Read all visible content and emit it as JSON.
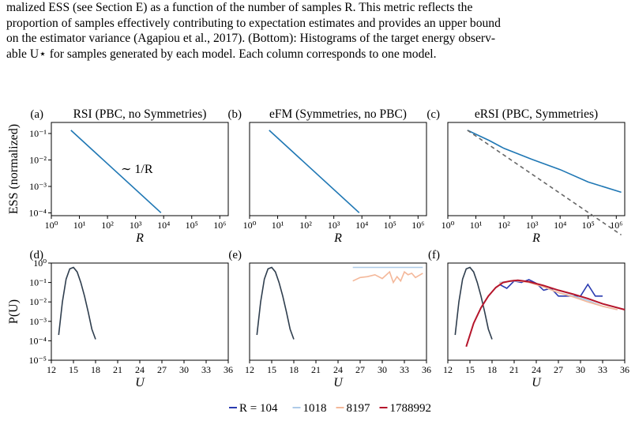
{
  "caption": {
    "line1": "malized ESS (see Section E) as a function of the number of samples R. This metric reflects the",
    "line2": "proportion of samples effectively contributing to expectation estimates and provides an upper bound",
    "line3": "on the estimator variance (Agapiou et al., 2017). (Bottom): Histograms of the target energy observ-",
    "line4": "able U⋆ for samples generated by each model. Each column corresponds to one model."
  },
  "chart_data": [
    {
      "type": "line",
      "panel": "(a)",
      "title": "RSI (PBC, no Symmetries)",
      "xlabel": "R",
      "ylabel": "ESS (normalized)",
      "xscale": "log",
      "yscale": "log",
      "xlim": [
        1,
        2000000
      ],
      "ylim": [
        0.0001,
        0.4
      ],
      "xticks": [
        "10⁰",
        "10¹",
        "10²",
        "10³",
        "10⁴",
        "10⁵",
        "10⁶"
      ],
      "yticks": [
        "10⁻¹",
        "10⁻²",
        "10⁻³",
        "10⁻⁴"
      ],
      "annotation": "∼ 1/R",
      "series": [
        {
          "color": "#1f77b4",
          "x": [
            5,
            8000
          ],
          "y": [
            0.2,
            0.00013
          ]
        }
      ]
    },
    {
      "type": "line",
      "panel": "(b)",
      "title": "eFM (Symmetries, no PBC)",
      "xlabel": "R",
      "xscale": "log",
      "yscale": "log",
      "xlim": [
        1,
        2000000
      ],
      "ylim": [
        0.0001,
        0.4
      ],
      "xticks": [
        "10⁰",
        "10¹",
        "10²",
        "10³",
        "10⁴",
        "10⁵",
        "10⁶"
      ],
      "series": [
        {
          "color": "#1f77b4",
          "x": [
            5,
            8000
          ],
          "y": [
            0.2,
            0.00013
          ]
        }
      ]
    },
    {
      "type": "line",
      "panel": "(c)",
      "title": "eRSI (PBC, Symmetries)",
      "xlabel": "R",
      "xscale": "log",
      "yscale": "log",
      "xlim": [
        1,
        2000000
      ],
      "ylim": [
        0.0001,
        0.4
      ],
      "xticks": [
        "10⁰",
        "10¹",
        "10²",
        "10³",
        "10⁴",
        "10⁵",
        "10⁶"
      ],
      "series": [
        {
          "color": "#1f77b4",
          "x": [
            5,
            30,
            100,
            1000,
            10000,
            100000,
            1500000
          ],
          "y": [
            0.2,
            0.08,
            0.04,
            0.015,
            0.006,
            0.002,
            0.0008
          ]
        },
        {
          "color": "#666666",
          "dashed": true,
          "x": [
            5,
            1500000
          ],
          "y": [
            0.2,
            1.8e-05
          ]
        }
      ]
    },
    {
      "type": "line",
      "panel": "(d)",
      "xlabel": "U",
      "ylabel": "P(U)",
      "yscale": "log",
      "xlim": [
        12,
        36
      ],
      "ylim": [
        1e-05,
        1
      ],
      "xticks": [
        "12",
        "15",
        "18",
        "21",
        "24",
        "27",
        "30",
        "33",
        "36"
      ],
      "yticks": [
        "10⁰",
        "10⁻¹",
        "10⁻²",
        "10⁻³",
        "10⁻⁴",
        "10⁻⁵"
      ],
      "series": [
        {
          "color": "#2f3e4e",
          "x": [
            13,
            13.5,
            14,
            14.5,
            15,
            15.5,
            16,
            16.5,
            17,
            17.5,
            18
          ],
          "y": [
            0.0002,
            0.01,
            0.15,
            0.5,
            0.6,
            0.35,
            0.1,
            0.02,
            0.003,
            0.0004,
            0.00012
          ]
        }
      ]
    },
    {
      "type": "line",
      "panel": "(e)",
      "xlabel": "U",
      "yscale": "log",
      "xlim": [
        12,
        36
      ],
      "ylim": [
        1e-05,
        1
      ],
      "xticks": [
        "12",
        "15",
        "18",
        "21",
        "24",
        "27",
        "30",
        "33",
        "36"
      ],
      "series": [
        {
          "color": "#2f3e4e",
          "x": [
            13,
            13.5,
            14,
            14.5,
            15,
            15.5,
            16,
            16.5,
            17,
            17.5,
            18
          ],
          "y": [
            0.0002,
            0.01,
            0.15,
            0.5,
            0.6,
            0.35,
            0.1,
            0.02,
            0.003,
            0.0004,
            0.00012
          ]
        },
        {
          "color": "#aecbe8",
          "x": [
            26,
            35.5
          ],
          "y": [
            0.6,
            0.6
          ]
        },
        {
          "color": "#f4b89a",
          "x": [
            26,
            27,
            28,
            29,
            30,
            31,
            31.5,
            32,
            32.5,
            33,
            33.5,
            34,
            34.5,
            35.5
          ],
          "y": [
            0.12,
            0.18,
            0.2,
            0.25,
            0.16,
            0.35,
            0.1,
            0.2,
            0.12,
            0.35,
            0.25,
            0.3,
            0.18,
            0.3
          ]
        }
      ]
    },
    {
      "type": "line",
      "panel": "(f)",
      "xlabel": "U",
      "yscale": "log",
      "xlim": [
        12,
        36
      ],
      "ylim": [
        1e-05,
        1
      ],
      "xticks": [
        "12",
        "15",
        "18",
        "21",
        "24",
        "27",
        "30",
        "33",
        "36"
      ],
      "series": [
        {
          "color": "#2f3e4e",
          "x": [
            13,
            13.5,
            14,
            14.5,
            15,
            15.5,
            16,
            16.5,
            17,
            17.5,
            18
          ],
          "y": [
            0.0002,
            0.01,
            0.15,
            0.5,
            0.6,
            0.35,
            0.1,
            0.02,
            0.003,
            0.0004,
            0.00012
          ]
        },
        {
          "name": "R = 104",
          "color": "#2a3bb0",
          "x": [
            19,
            20,
            21,
            22,
            23,
            24,
            25,
            26,
            27,
            28,
            29,
            30,
            31,
            32,
            33
          ],
          "y": [
            0.08,
            0.05,
            0.12,
            0.1,
            0.14,
            0.09,
            0.04,
            0.05,
            0.02,
            0.02,
            0.02,
            0.02,
            0.08,
            0.02,
            0.02
          ]
        },
        {
          "name": "1018",
          "color": "#aecbe8",
          "x": [
            19,
            21,
            23,
            25,
            27,
            29,
            31,
            33,
            35
          ],
          "y": [
            0.1,
            0.12,
            0.11,
            0.06,
            0.03,
            0.02,
            0.012,
            0.006,
            0.004
          ]
        },
        {
          "name": "8197",
          "color": "#f4b89a",
          "x": [
            19,
            21,
            23,
            25,
            27,
            29,
            31,
            33,
            35
          ],
          "y": [
            0.09,
            0.13,
            0.1,
            0.06,
            0.03,
            0.018,
            0.01,
            0.006,
            0.004
          ]
        },
        {
          "name": "1788992",
          "color": "#b5152b",
          "x": [
            14.5,
            15.5,
            16.5,
            17.5,
            18.5,
            19.5,
            20.5,
            21.5,
            23,
            25,
            27,
            29,
            31,
            33,
            36
          ],
          "y": [
            5e-05,
            0.0008,
            0.005,
            0.02,
            0.055,
            0.1,
            0.12,
            0.13,
            0.11,
            0.07,
            0.04,
            0.025,
            0.015,
            0.008,
            0.004
          ]
        }
      ]
    }
  ],
  "legend": {
    "items": [
      {
        "label": "R = 104",
        "color": "#2a3bb0"
      },
      {
        "label": "1018",
        "color": "#aecbe8"
      },
      {
        "label": "8197",
        "color": "#f4b89a"
      },
      {
        "label": "1788992",
        "color": "#b5152b"
      }
    ]
  }
}
